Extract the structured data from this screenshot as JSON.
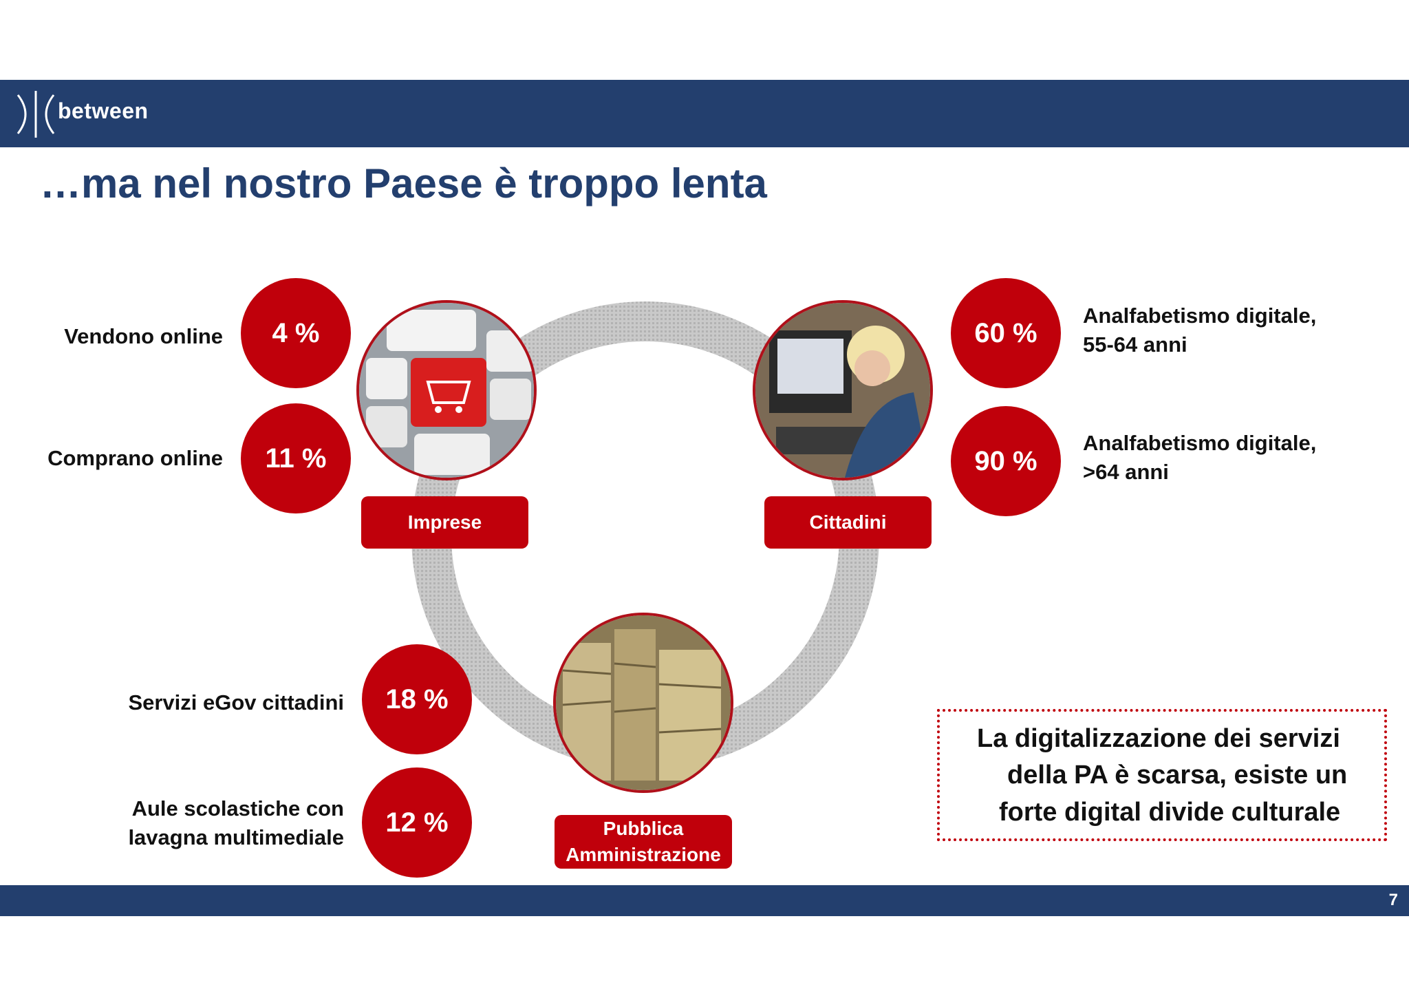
{
  "header": {
    "brand": "between",
    "title": "…ma nel nostro Paese è troppo lenta"
  },
  "footer": {
    "page_number": "7"
  },
  "imprese": {
    "label": "Imprese",
    "stats": [
      {
        "label": "Vendono online",
        "value": "4 %"
      },
      {
        "label": "Comprano online",
        "value": "11 %"
      }
    ]
  },
  "cittadini": {
    "label": "Cittadini",
    "stats": [
      {
        "label_line1": "Analfabetismo digitale,",
        "label_line2": "55-64 anni",
        "value": "60 %"
      },
      {
        "label_line1": "Analfabetismo digitale,",
        "label_line2": ">64 anni",
        "value": "90 %"
      }
    ]
  },
  "pa": {
    "label_line1": "Pubblica",
    "label_line2": "Amministrazione",
    "stats": [
      {
        "label": "Servizi eGov cittadini",
        "value": "18 %"
      },
      {
        "label_line1": "Aule scolastiche con",
        "label_line2": "lavagna multimediale",
        "value": "12 %"
      }
    ]
  },
  "callout": {
    "line1": "La digitalizzazione dei servizi",
    "line2": "della PA è scarsa, esiste un",
    "line3": "forte digital divide culturale"
  },
  "colors": {
    "brand_blue": "#233f6e",
    "accent_red": "#c0000b"
  }
}
